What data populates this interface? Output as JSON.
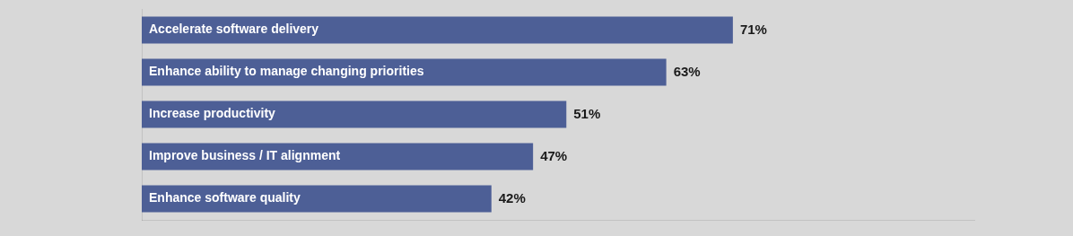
{
  "chart_data": {
    "type": "bar",
    "orientation": "horizontal",
    "categories": [
      "Enhance software quality",
      "Improve business / IT alignment",
      "Increase productivity",
      "Enhance ability to manage changing priorities",
      "Accelerate software delivery"
    ],
    "values": [
      42,
      47,
      51,
      63,
      71
    ],
    "value_labels": [
      "42%",
      "47%",
      "51%",
      "63%",
      "71%"
    ],
    "data_labels": true,
    "color": "#4d5f96",
    "xlim": [
      0,
      100
    ],
    "grid": false,
    "tick_labels": false
  }
}
